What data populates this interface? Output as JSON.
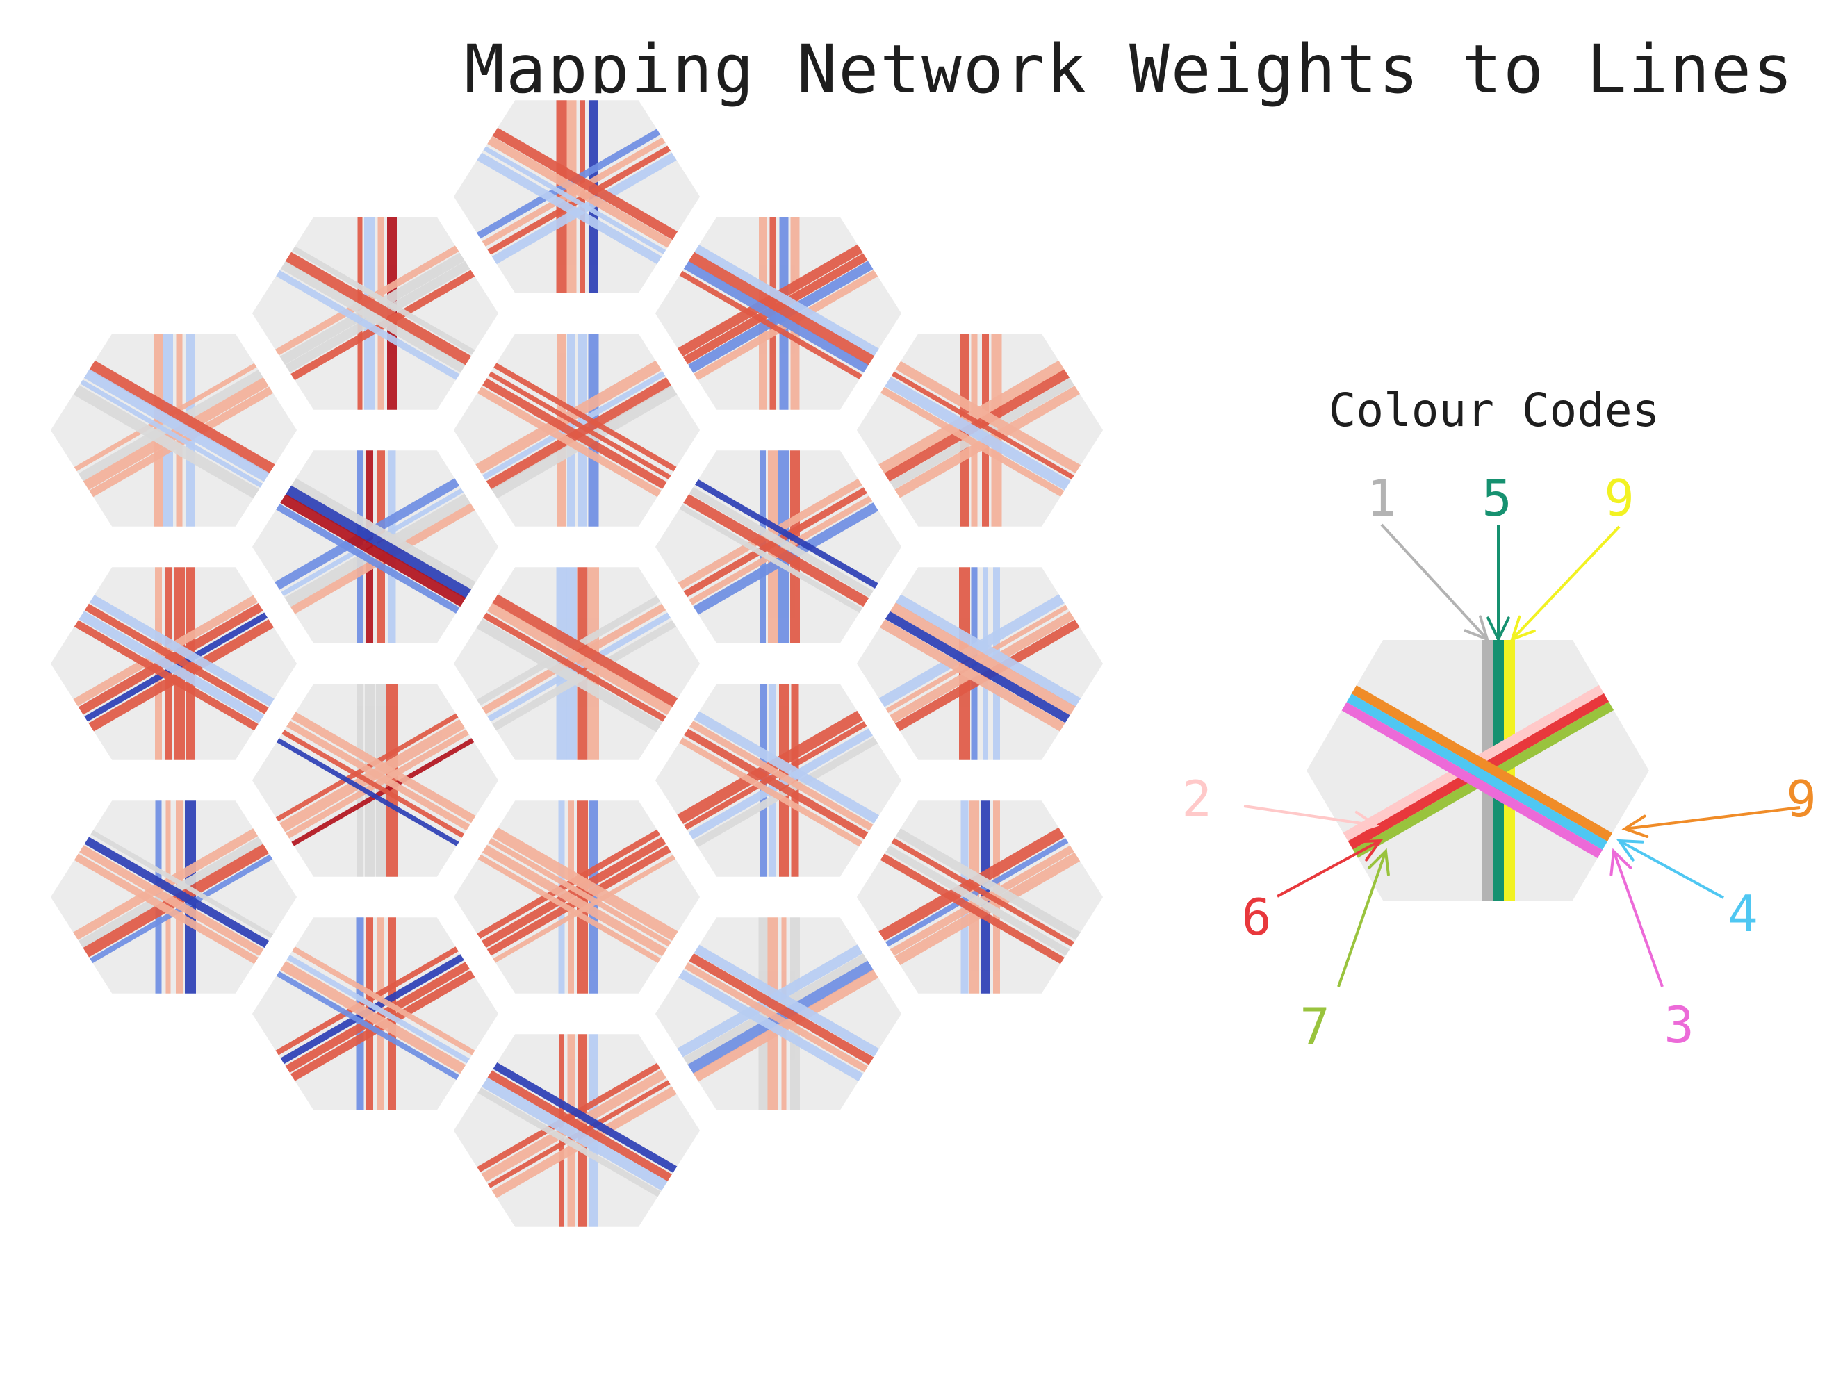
{
  "title": "Mapping Network Weights to Lines",
  "legend": {
    "title": "Colour Codes",
    "codes": [
      {
        "label": "1",
        "color": "#b3b3b3",
        "line": "vertical-left"
      },
      {
        "label": "5",
        "color": "#169170",
        "line": "vertical-center"
      },
      {
        "label": "9",
        "color": "#f2f222",
        "line": "vertical-right"
      },
      {
        "label": "2",
        "color": "#ffc9c9",
        "line": "rising-top"
      },
      {
        "label": "6",
        "color": "#e8383c",
        "line": "rising-middle"
      },
      {
        "label": "7",
        "color": "#99c33d",
        "line": "rising-bottom"
      },
      {
        "label": "9",
        "color": "#f08c28",
        "line": "falling-top"
      },
      {
        "label": "4",
        "color": "#4fc7f2",
        "line": "falling-middle"
      },
      {
        "label": "3",
        "color": "#ec6ad8",
        "line": "falling-bottom"
      }
    ]
  },
  "colors": {
    "tile": "#ececec",
    "title": "#1e1e1e",
    "strong_red": "#b2141e",
    "mid_red": "#e05a46",
    "light_red": "#f3b09a",
    "neutral": "#d9d9d9",
    "light_blue": "#b7cdf3",
    "mid_blue": "#6f8fe3",
    "strong_blue": "#2d3fb6"
  }
}
